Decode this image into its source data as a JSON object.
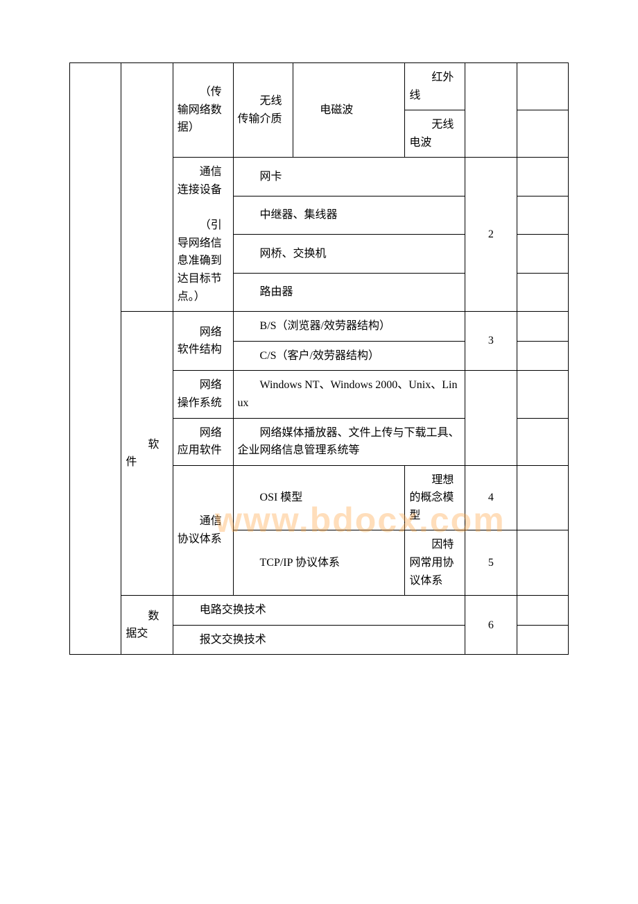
{
  "table": {
    "r1c3": "（传输网络数据）",
    "r1c4": "无线传输介质",
    "r1c5": "电磁波",
    "r1c6": "红外线",
    "r2c6": "无线电波",
    "r3c3": "通信连接设备",
    "r3c4": "网卡",
    "r4c4": "中继器、集线器",
    "r5c4": "网桥、交换机",
    "r3g": "2",
    "r6c3": "（引导网络信息准确到达目标节点。）",
    "r6c4": "路由器",
    "r7c2": "软件",
    "r7c3": "网络软件结构",
    "r7c4": "B/S（浏览器/效劳器结构）",
    "r7g": "3",
    "r8c4": "C/S（客户/效劳器结构）",
    "r9c3": "网络操作系统",
    "r9c4": "Windows NT、Windows 2000、Unix、Linux",
    "r10c3": "网络应用软件",
    "r10c4": "网络媒体播放器、文件上传与下载工具、企业网络信息管理系统等",
    "r11c3": "通信协议体系",
    "r11c4": "OSI 模型",
    "r11c5": "理想的概念模型",
    "r11g": "4",
    "r12c4": "TCP/IP 协议体系",
    "r12c5": "因特网常用协议体系",
    "r12g": "5",
    "r13c2": "数据交",
    "r13c3": "电路交换技术",
    "r13g": "6",
    "r14c3": "报文交换技术"
  },
  "watermark": "www.bdocx.com"
}
